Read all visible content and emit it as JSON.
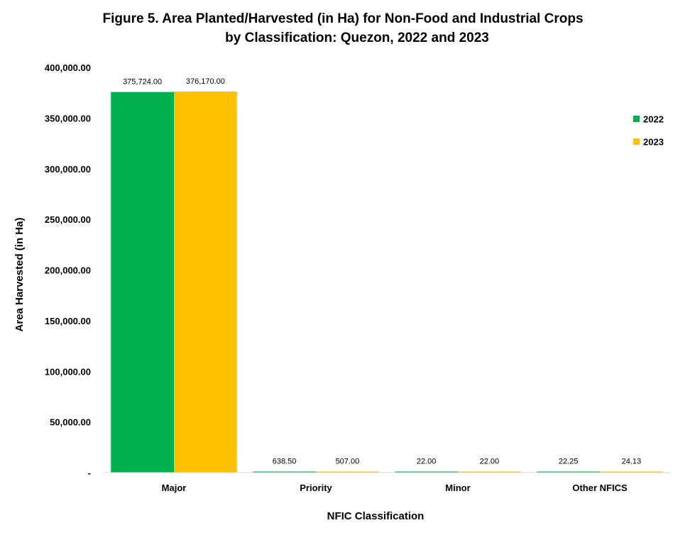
{
  "chart_data": {
    "type": "bar",
    "title_lines": [
      "Figure 5. Area Planted/Harvested (in Ha) for Non-Food and Industrial Crops",
      "by Classification: Quezon, 2022 and 2023"
    ],
    "xlabel": "NFIC Classification",
    "ylabel": "Area Harvested (in Ha)",
    "categories": [
      "Major",
      "Priority",
      "Minor",
      "Other NFICS"
    ],
    "series": [
      {
        "name": "2022",
        "color": "#00b050",
        "values": [
          375724.0,
          638.5,
          22.0,
          22.25
        ],
        "labels": [
          "375,724.00",
          "638.50",
          "22.00",
          "22.25"
        ]
      },
      {
        "name": "2023",
        "color": "#ffc000",
        "values": [
          376170.0,
          507.0,
          22.0,
          24.13
        ],
        "labels": [
          "376,170.00",
          "507.00",
          "22.00",
          "24.13"
        ]
      }
    ],
    "ylim": [
      0,
      400000
    ],
    "yticks": [
      0,
      50000,
      100000,
      150000,
      200000,
      250000,
      300000,
      350000,
      400000
    ],
    "ytick_labels": [
      "-",
      "50,000.00",
      "100,000.00",
      "150,000.00",
      "200,000.00",
      "250,000.00",
      "300,000.00",
      "350,000.00",
      "400,000.00"
    ],
    "grid": false,
    "legend_position": "right"
  }
}
